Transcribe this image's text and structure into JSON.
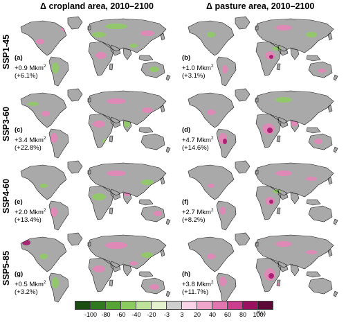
{
  "columns": [
    {
      "title": "Δ cropland area, 2010–2100"
    },
    {
      "title": "Δ pasture area, 2010–2100"
    }
  ],
  "rows": [
    {
      "label": "SSP1-45"
    },
    {
      "label": "SSP3-60"
    },
    {
      "label": "SSP4-60"
    },
    {
      "label": "SSP5-85"
    }
  ],
  "panels": [
    {
      "letter": "(a)",
      "value": "+0.9 Mkm",
      "exp": "2",
      "pct": "(+6.1%)"
    },
    {
      "letter": "(b)",
      "value": "+1.0 Mkm",
      "exp": "2",
      "pct": "(+3.1%)"
    },
    {
      "letter": "(c)",
      "value": "+3.4 Mkm",
      "exp": "2",
      "pct": "(+22.8%)"
    },
    {
      "letter": "(d)",
      "value": "+4.7 Mkm",
      "exp": "2",
      "pct": "(+14.6%)"
    },
    {
      "letter": "(e)",
      "value": "+2.0 Mkm",
      "exp": "2",
      "pct": "(+13.4%)"
    },
    {
      "letter": "(f)",
      "value": "+2.7 Mkm",
      "exp": "2",
      "pct": "(+8.2%)"
    },
    {
      "letter": "(g)",
      "value": "+0.5 Mkm",
      "exp": "2",
      "pct": "(+3.2%)"
    },
    {
      "letter": "(h)",
      "value": "+3.8 Mkm",
      "exp": "2",
      "pct": "(+11.7%)"
    }
  ],
  "legend": {
    "ticks": [
      "-100",
      "-80",
      "-60",
      "-40",
      "-20",
      "-3",
      "3",
      "20",
      "40",
      "60",
      "80",
      "100"
    ],
    "unit": "(%)",
    "colors": [
      "#1b4d12",
      "#2f7a1f",
      "#57a635",
      "#8ccc5e",
      "#bfe39b",
      "#e3f1cf",
      "#cfcfcf",
      "#f9d3e6",
      "#f0a6cb",
      "#e274b0",
      "#cc3d8d",
      "#9c1060",
      "#5e0837"
    ]
  },
  "map_colors": {
    "land": "#a9a9a9",
    "increase": "#e784b8",
    "decrease": "#8fcc62",
    "strong_increase": "#a3126a",
    "coast": "#1a1a1a"
  }
}
